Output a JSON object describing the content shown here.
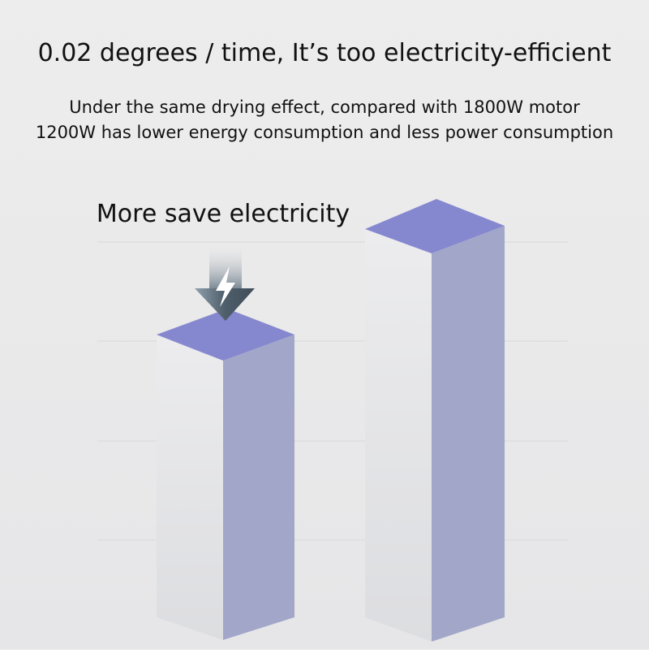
{
  "header": {
    "title": "0.02 degrees / time, It’s too electricity-efficient",
    "subtitle_lines": [
      "Under the same drying effect, compared with 1800W motor",
      "1200W has lower energy consumption and less power consumption"
    ]
  },
  "callout": "More save electricity"
}
